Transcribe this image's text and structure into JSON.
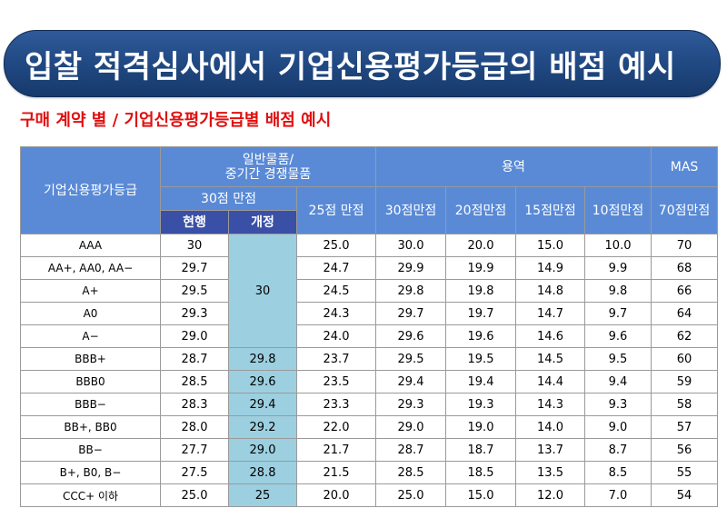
{
  "title": "입찰 적격심사에서  기업신용평가등급의 배점 예시",
  "subtitle": "구매 계약 별 / 기업신용평가등급별 배점 예시",
  "header": {
    "grade": "기업신용평가등급",
    "general_goods": "일반물품/\n중기간 경쟁물품",
    "service": "용역",
    "mas": "MAS",
    "pts30": "30점 만점",
    "pts25": "25점 만점",
    "svc30": "30점만점",
    "svc20": "20점만점",
    "svc15": "15점만점",
    "svc10": "10점만점",
    "mas70": "70점만점",
    "current": "현행",
    "revised": "개정"
  },
  "merged_revised_value": "30",
  "rows": [
    {
      "grade": "AAA",
      "current": "30",
      "revised": "",
      "g25": "25.0",
      "s30": "30.0",
      "s20": "20.0",
      "s15": "15.0",
      "s10": "10.0",
      "mas": "70"
    },
    {
      "grade": "AA+, AA0, AA−",
      "current": "29.7",
      "revised": "",
      "g25": "24.7",
      "s30": "29.9",
      "s20": "19.9",
      "s15": "14.9",
      "s10": "9.9",
      "mas": "68"
    },
    {
      "grade": "A+",
      "current": "29.5",
      "revised": "",
      "g25": "24.5",
      "s30": "29.8",
      "s20": "19.8",
      "s15": "14.8",
      "s10": "9.8",
      "mas": "66"
    },
    {
      "grade": "A0",
      "current": "29.3",
      "revised": "",
      "g25": "24.3",
      "s30": "29.7",
      "s20": "19.7",
      "s15": "14.7",
      "s10": "9.7",
      "mas": "64"
    },
    {
      "grade": "A−",
      "current": "29.0",
      "revised": "",
      "g25": "24.0",
      "s30": "29.6",
      "s20": "19.6",
      "s15": "14.6",
      "s10": "9.6",
      "mas": "62"
    },
    {
      "grade": "BBB+",
      "current": "28.7",
      "revised": "29.8",
      "g25": "23.7",
      "s30": "29.5",
      "s20": "19.5",
      "s15": "14.5",
      "s10": "9.5",
      "mas": "60"
    },
    {
      "grade": "BBB0",
      "current": "28.5",
      "revised": "29.6",
      "g25": "23.5",
      "s30": "29.4",
      "s20": "19.4",
      "s15": "14.4",
      "s10": "9.4",
      "mas": "59"
    },
    {
      "grade": "BBB−",
      "current": "28.3",
      "revised": "29.4",
      "g25": "23.3",
      "s30": "29.3",
      "s20": "19.3",
      "s15": "14.3",
      "s10": "9.3",
      "mas": "58"
    },
    {
      "grade": "BB+, BB0",
      "current": "28.0",
      "revised": "29.2",
      "g25": "22.0",
      "s30": "29.0",
      "s20": "19.0",
      "s15": "14.0",
      "s10": "9.0",
      "mas": "57"
    },
    {
      "grade": "BB−",
      "current": "27.7",
      "revised": "29.0",
      "g25": "21.7",
      "s30": "28.7",
      "s20": "18.7",
      "s15": "13.7",
      "s10": "8.7",
      "mas": "56"
    },
    {
      "grade": "B+, B0, B−",
      "current": "27.5",
      "revised": "28.8",
      "g25": "21.5",
      "s30": "28.5",
      "s20": "18.5",
      "s15": "13.5",
      "s10": "8.5",
      "mas": "55"
    },
    {
      "grade": "CCC+ 이하",
      "current": "25.0",
      "revised": "25",
      "g25": "20.0",
      "s30": "25.0",
      "s20": "15.0",
      "s15": "12.0",
      "s10": "7.0",
      "mas": "54"
    }
  ]
}
